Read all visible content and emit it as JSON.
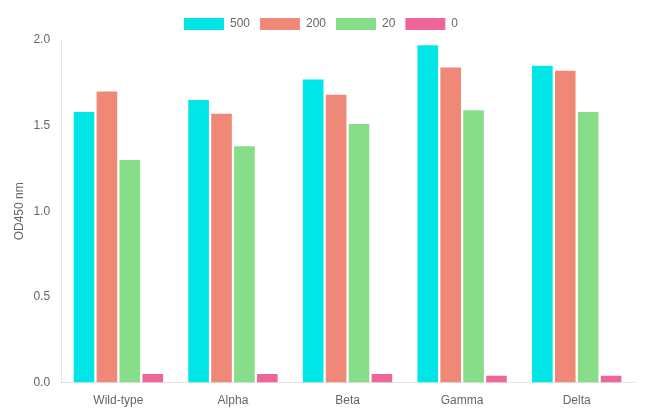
{
  "chart_data": {
    "type": "bar",
    "categories": [
      "Wild-type",
      "Alpha",
      "Beta",
      "Gamma",
      "Delta"
    ],
    "series": [
      {
        "name": "500",
        "color": "#00E5E5",
        "values": [
          1.58,
          1.65,
          1.77,
          1.97,
          1.85
        ]
      },
      {
        "name": "200",
        "color": "#F08878",
        "values": [
          1.7,
          1.57,
          1.68,
          1.84,
          1.82
        ]
      },
      {
        "name": "20",
        "color": "#88DD88",
        "values": [
          1.3,
          1.38,
          1.51,
          1.59,
          1.58
        ]
      },
      {
        "name": "0",
        "color": "#EE6699",
        "values": [
          0.05,
          0.05,
          0.05,
          0.04,
          0.04
        ]
      }
    ],
    "ylabel": "OD450 nm",
    "ylim": [
      0,
      2.0
    ],
    "yticks": [
      {
        "value": 0.0,
        "label": "0.0"
      },
      0.5,
      {
        "value": 1.0,
        "label": "1.0"
      },
      1.5,
      {
        "value": 2.0,
        "label": "2.0"
      }
    ],
    "grid": false,
    "legend": "top"
  }
}
